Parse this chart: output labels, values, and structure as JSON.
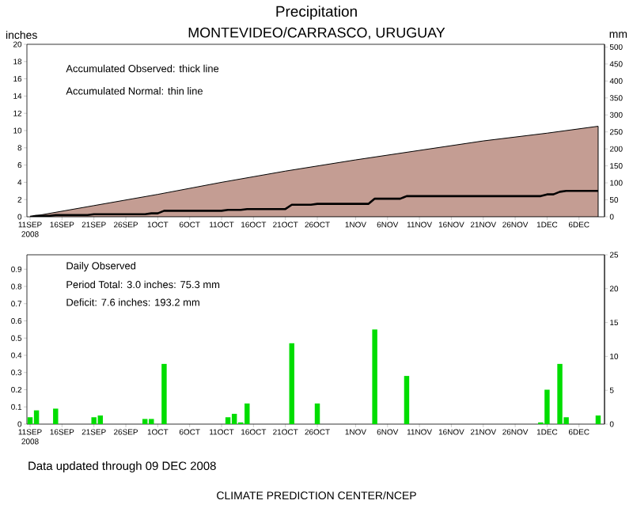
{
  "chart_data": [
    {
      "type": "area",
      "title": "Precipitation",
      "subtitle": "MONTEVIDEO/CARRASCO, URUGUAY",
      "ylabel": "inches",
      "y2label": "mm",
      "xlim": [
        "2008-09-10T12:00",
        "2008-12-10"
      ],
      "xticks": [
        {
          "value": "2008-09-11",
          "label": "11SEP 2008"
        },
        {
          "value": "2008-09-16",
          "label": "16SEP"
        },
        {
          "value": "2008-09-21",
          "label": "21SEP"
        },
        {
          "value": "2008-09-26",
          "label": "26SEP"
        },
        {
          "value": "2008-10-01",
          "label": "1OCT"
        },
        {
          "value": "2008-10-06",
          "label": "6OCT"
        },
        {
          "value": "2008-10-11",
          "label": "11OCT"
        },
        {
          "value": "2008-10-16",
          "label": "16OCT"
        },
        {
          "value": "2008-10-21",
          "label": "21OCT"
        },
        {
          "value": "2008-10-26",
          "label": "26OCT"
        },
        {
          "value": "2008-11-01",
          "label": "1NOV"
        },
        {
          "value": "2008-11-06",
          "label": "6NOV"
        },
        {
          "value": "2008-11-11",
          "label": "11NOV"
        },
        {
          "value": "2008-11-16",
          "label": "16NOV"
        },
        {
          "value": "2008-11-21",
          "label": "21NOV"
        },
        {
          "value": "2008-11-26",
          "label": "26NOV"
        },
        {
          "value": "2008-12-01",
          "label": "1DEC"
        },
        {
          "value": "2008-12-06",
          "label": "6DEC"
        }
      ],
      "ylim": [
        0,
        20
      ],
      "yticks": [
        0,
        2,
        4,
        6,
        8,
        10,
        12,
        14,
        16,
        18,
        20
      ],
      "y2lim": [
        0,
        508
      ],
      "y2ticks": [
        0,
        50,
        100,
        150,
        200,
        250,
        300,
        350,
        400,
        450,
        500
      ],
      "annotations": [
        "Accumulated Observed: thick line",
        "Accumulated Normal: thin line"
      ],
      "series": [
        {
          "type": "area",
          "color": "#c49d93",
          "x": [
            "2008-09-11",
            "2008-09-21",
            "2008-10-01",
            "2008-10-11",
            "2008-10-21",
            "2008-11-01",
            "2008-11-11",
            "2008-11-21",
            "2008-12-01",
            "2008-12-09"
          ],
          "values": [
            0,
            1.3,
            2.6,
            4.0,
            5.3,
            6.6,
            7.7,
            8.8,
            9.7,
            10.5
          ]
        },
        {
          "type": "line",
          "color": "#000000",
          "x": [
            "2008-09-11",
            "2008-09-12",
            "2008-09-14",
            "2008-09-15",
            "2008-09-20",
            "2008-09-21",
            "2008-09-22",
            "2008-09-28",
            "2008-09-29",
            "2008-09-30",
            "2008-10-01",
            "2008-10-02",
            "2008-10-11",
            "2008-10-12",
            "2008-10-13",
            "2008-10-14",
            "2008-10-15",
            "2008-10-21",
            "2008-10-22",
            "2008-10-25",
            "2008-10-26",
            "2008-11-03",
            "2008-11-04",
            "2008-11-08",
            "2008-11-09",
            "2008-11-29",
            "2008-11-30",
            "2008-12-01",
            "2008-12-02",
            "2008-12-03",
            "2008-12-04",
            "2008-12-08",
            "2008-12-09"
          ],
          "values": [
            0,
            0.1,
            0.1,
            0.2,
            0.2,
            0.3,
            0.3,
            0.3,
            0.3,
            0.4,
            0.4,
            0.7,
            0.7,
            0.8,
            0.8,
            0.8,
            0.9,
            0.9,
            1.4,
            1.4,
            1.5,
            1.5,
            2.1,
            2.1,
            2.4,
            2.4,
            2.4,
            2.6,
            2.6,
            2.9,
            3.0,
            3.0,
            3.0
          ]
        }
      ]
    },
    {
      "type": "bar",
      "xlim": [
        "2008-09-10T12:00",
        "2008-12-10"
      ],
      "xticks": [
        {
          "value": "2008-09-11",
          "label": "11SEP 2008"
        },
        {
          "value": "2008-09-16",
          "label": "16SEP"
        },
        {
          "value": "2008-09-21",
          "label": "21SEP"
        },
        {
          "value": "2008-09-26",
          "label": "26SEP"
        },
        {
          "value": "2008-10-01",
          "label": "1OCT"
        },
        {
          "value": "2008-10-06",
          "label": "6OCT"
        },
        {
          "value": "2008-10-11",
          "label": "11OCT"
        },
        {
          "value": "2008-10-16",
          "label": "16OCT"
        },
        {
          "value": "2008-10-21",
          "label": "21OCT"
        },
        {
          "value": "2008-10-26",
          "label": "26OCT"
        },
        {
          "value": "2008-11-01",
          "label": "1NOV"
        },
        {
          "value": "2008-11-06",
          "label": "6NOV"
        },
        {
          "value": "2008-11-11",
          "label": "11NOV"
        },
        {
          "value": "2008-11-16",
          "label": "16NOV"
        },
        {
          "value": "2008-11-21",
          "label": "21NOV"
        },
        {
          "value": "2008-11-26",
          "label": "26NOV"
        },
        {
          "value": "2008-12-01",
          "label": "1DEC"
        },
        {
          "value": "2008-12-06",
          "label": "6DEC"
        }
      ],
      "ylim": [
        0,
        0.984
      ],
      "yticks": [
        0,
        0.1,
        0.2,
        0.3,
        0.4,
        0.5,
        0.6,
        0.7,
        0.8,
        0.9
      ],
      "y2lim": [
        0,
        25
      ],
      "y2ticks": [
        0,
        5,
        10,
        15,
        20,
        25
      ],
      "annotations": [
        "Daily Observed",
        "Period Total:   3.0 inches:   75.3 mm",
        "Deficit:   7.6 inches:  193.2 mm"
      ],
      "series": [
        {
          "color": "#00dd00",
          "x": [
            "2008-09-11",
            "2008-09-12",
            "2008-09-15",
            "2008-09-21",
            "2008-09-22",
            "2008-09-29",
            "2008-09-30",
            "2008-10-02",
            "2008-10-12",
            "2008-10-13",
            "2008-10-14",
            "2008-10-15",
            "2008-10-22",
            "2008-10-26",
            "2008-11-04",
            "2008-11-09",
            "2008-11-30",
            "2008-12-01",
            "2008-12-03",
            "2008-12-04",
            "2008-12-09"
          ],
          "values": [
            0.04,
            0.08,
            0.09,
            0.04,
            0.05,
            0.03,
            0.03,
            0.35,
            0.04,
            0.06,
            0.01,
            0.12,
            0.47,
            0.12,
            0.55,
            0.28,
            0.01,
            0.2,
            0.35,
            0.04,
            0.05
          ]
        }
      ]
    },
    {
      "type": "other",
      "annotations": [
        "Data updated through 09 DEC 2008",
        "CLIMATE PREDICTION CENTER/NCEP"
      ]
    }
  ]
}
